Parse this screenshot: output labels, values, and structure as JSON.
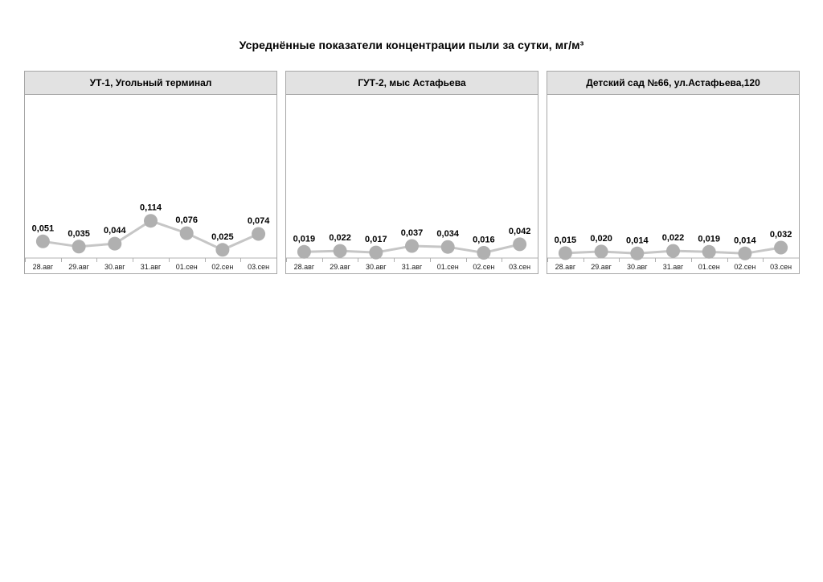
{
  "page": {
    "title": "Усреднённые показатели концентрации пыли за сутки, мг/м³"
  },
  "colors": {
    "header_bg": "#e2e2e2",
    "panel_border": "#a6a6a6",
    "series_line": "#c6c6c6",
    "marker_fill": "#b0b0b0",
    "axis_line": "#b0b0b0",
    "value_label": "#000000",
    "date_label": "#1a1a1a"
  },
  "chart_data": [
    {
      "type": "line",
      "title": "УТ-1, Угольный терминал",
      "categories": [
        "28.авг",
        "29.авг",
        "30.авг",
        "31.авг",
        "01.сен",
        "02.сен",
        "03.сен"
      ],
      "values": [
        0.051,
        0.035,
        0.044,
        0.114,
        0.076,
        0.025,
        0.074
      ],
      "value_labels": [
        "0,051",
        "0,035",
        "0,044",
        "0,114",
        "0,076",
        "0,025",
        "0,074"
      ],
      "xlabel": "",
      "ylabel": "",
      "ylim": [
        0,
        0.5
      ],
      "grid": false,
      "legend": "none"
    },
    {
      "type": "line",
      "title": "ГУТ-2, мыс Астафьева",
      "categories": [
        "28.авг",
        "29.авг",
        "30.авг",
        "31.авг",
        "01.сен",
        "02.сен",
        "03.сен"
      ],
      "values": [
        0.019,
        0.022,
        0.017,
        0.037,
        0.034,
        0.016,
        0.042
      ],
      "value_labels": [
        "0,019",
        "0,022",
        "0,017",
        "0,037",
        "0,034",
        "0,016",
        "0,042"
      ],
      "xlabel": "",
      "ylabel": "",
      "ylim": [
        0,
        0.5
      ],
      "grid": false,
      "legend": "none"
    },
    {
      "type": "line",
      "title": "Детский сад №66, ул.Астафьева,120",
      "categories": [
        "28.авг",
        "29.авг",
        "30.авг",
        "31.авг",
        "01.сен",
        "02.сен",
        "03.сен"
      ],
      "values": [
        0.015,
        0.02,
        0.014,
        0.022,
        0.019,
        0.014,
        0.032
      ],
      "value_labels": [
        "0,015",
        "0,020",
        "0,014",
        "0,022",
        "0,019",
        "0,014",
        "0,032"
      ],
      "xlabel": "",
      "ylabel": "",
      "ylim": [
        0,
        0.5
      ],
      "grid": false,
      "legend": "none"
    }
  ]
}
